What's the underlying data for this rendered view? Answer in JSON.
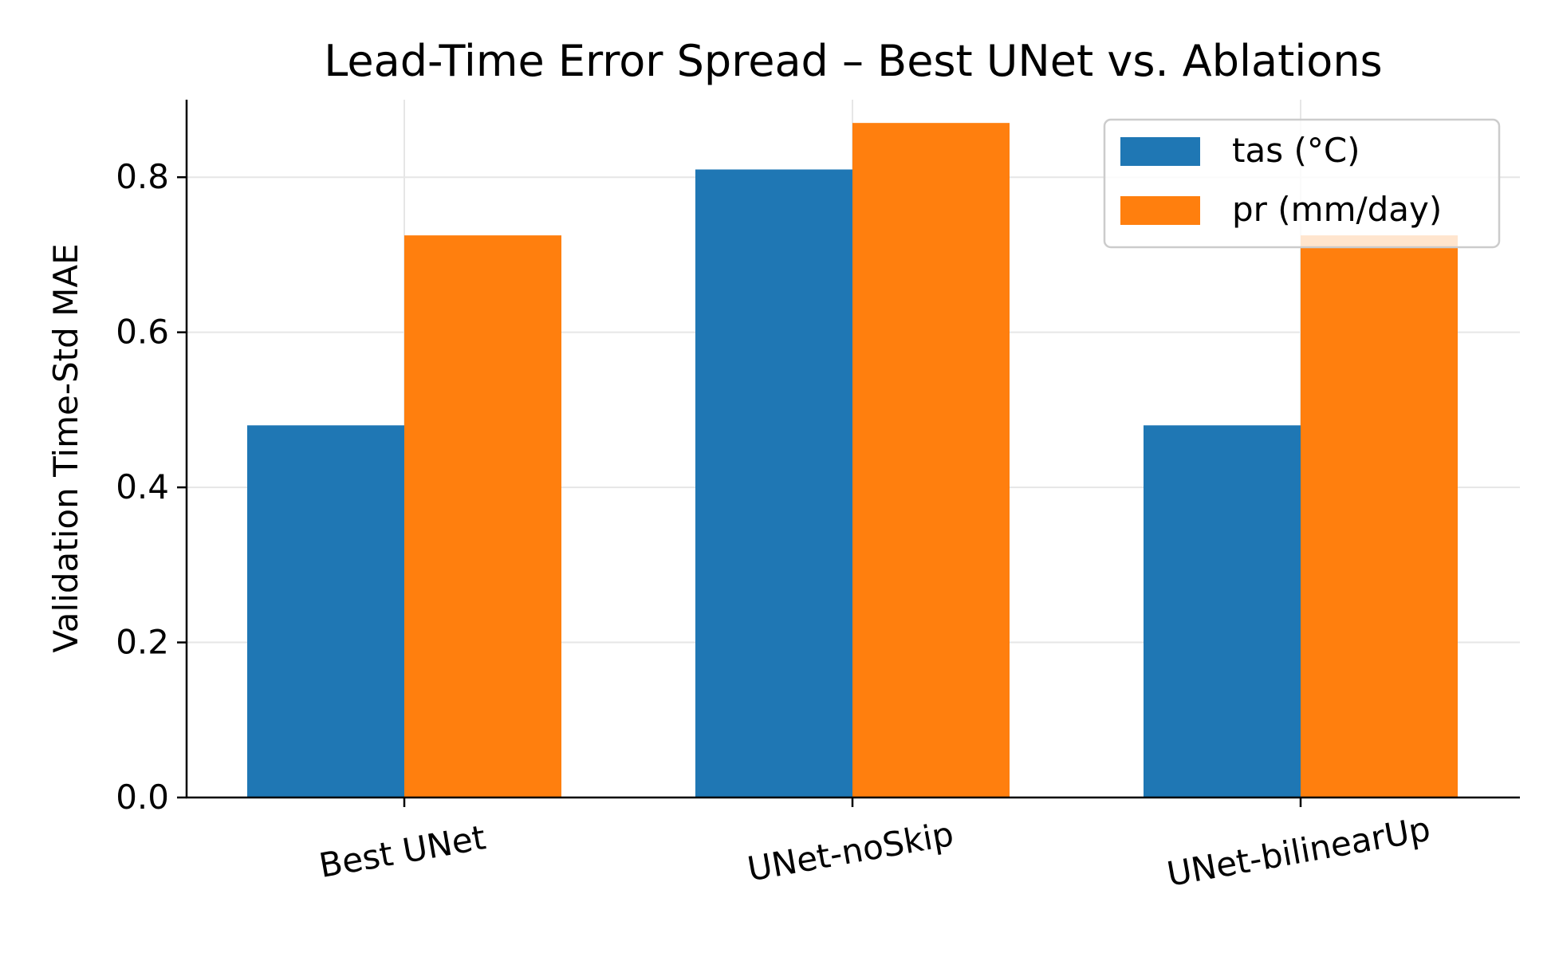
{
  "chart_data": {
    "type": "bar",
    "title": "Lead-Time Error Spread – Best UNet vs. Ablations",
    "xlabel": "",
    "ylabel": "Validation Time-Std MAE",
    "categories": [
      "Best UNet",
      "UNet-noSkip",
      "UNet-bilinearUp"
    ],
    "series": [
      {
        "name": "tas (°C)",
        "color": "#1f77b4",
        "values": [
          0.48,
          0.81,
          0.48
        ]
      },
      {
        "name": "pr (mm/day)",
        "color": "#ff7f0e",
        "values": [
          0.725,
          0.87,
          0.725
        ]
      }
    ],
    "ylim": [
      0,
      0.9
    ],
    "yticks": [
      0.0,
      0.2,
      0.4,
      0.6,
      0.8
    ],
    "ytick_labels": [
      "0.0",
      "0.2",
      "0.4",
      "0.6",
      "0.8"
    ],
    "grid": true,
    "legend_position": "top-right"
  }
}
